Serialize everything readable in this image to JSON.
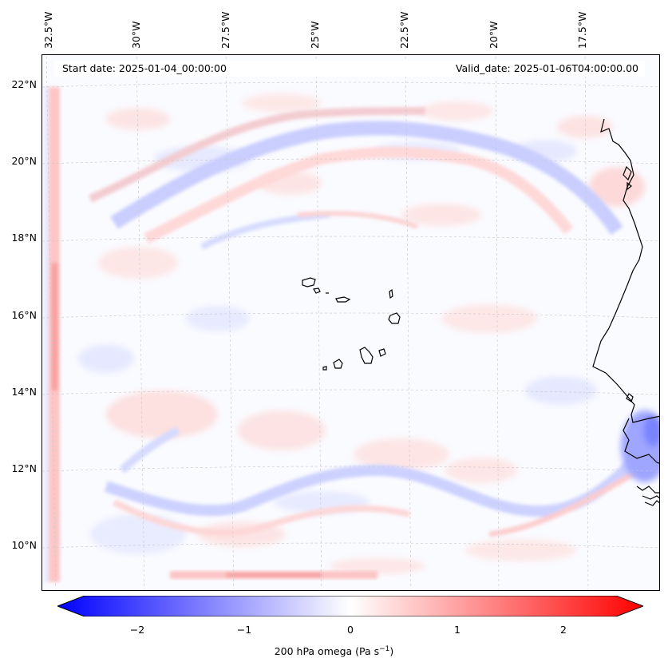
{
  "map": {
    "title_start": "Start date: 2025-01-04_00:00:00",
    "title_valid": "Valid_date: 2025-01-06T04:00:00.00",
    "lon_labels": [
      "32.5°W",
      "30°W",
      "27.5°W",
      "25°W",
      "22.5°W",
      "20°W",
      "17.5°W"
    ],
    "lat_labels": [
      "22°N",
      "20°N",
      "18°N",
      "16°N",
      "14°N",
      "12°N",
      "10°N"
    ],
    "colors": {
      "negative": "#0000ff",
      "zero": "#ffffff",
      "positive": "#ff0000",
      "coast": "#000000",
      "grid": "#b0b0b0"
    }
  },
  "colorbar": {
    "ticks": [
      "−2",
      "−1",
      "0",
      "1",
      "2"
    ],
    "label_main": "200 hPa omega (Pa s",
    "label_exp": "−1",
    "label_close": ")",
    "range": [
      -2.6,
      2.6
    ]
  }
}
